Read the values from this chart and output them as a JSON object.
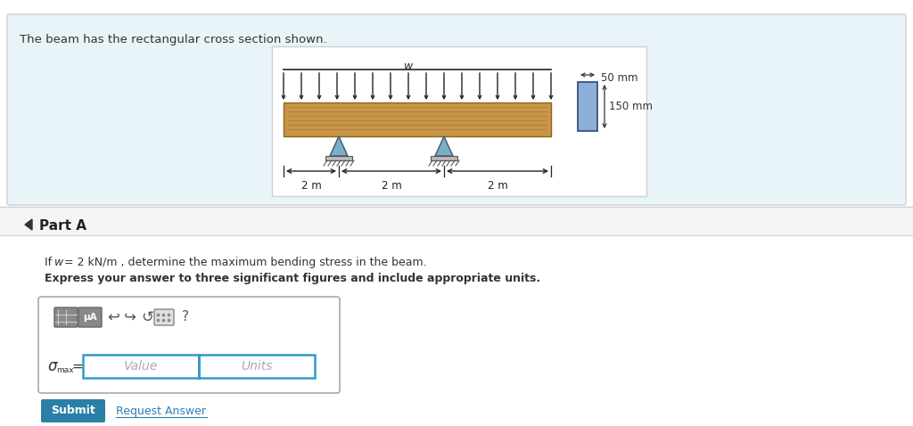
{
  "bg_color": "#e8f4f8",
  "white_bg": "#ffffff",
  "light_gray": "#f0f0f0",
  "mid_gray": "#d0d0d0",
  "dark_gray": "#555555",
  "text_color": "#333333",
  "blue_button": "#2e7fb5",
  "teal_button": "#2a7fa5",
  "input_border": "#3399cc",
  "header_text": "The beam has the rectangular cross section shown.",
  "part_label": "Part A",
  "problem_text_bold": "Express your answer to three significant figures and include appropriate units.",
  "sigma_label": "σ",
  "max_label": "max",
  "equals": "=",
  "value_placeholder": "Value",
  "units_placeholder": "Units",
  "submit_label": "Submit",
  "request_label": "Request Answer",
  "dim_50mm": "50 mm",
  "dim_150mm": "150 mm",
  "dim_2m_1": "2 m",
  "dim_2m_2": "2 m",
  "dim_2m_3": "2 m",
  "w_label": "w"
}
